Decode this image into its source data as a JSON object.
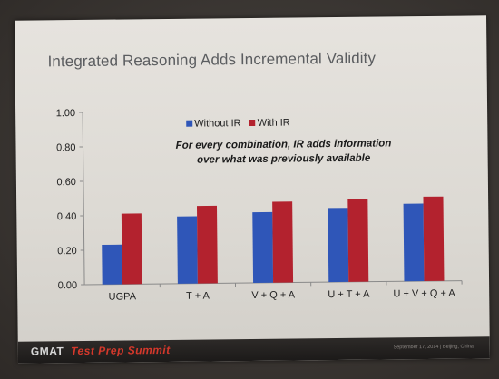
{
  "slide": {
    "title": "Integrated Reasoning Adds Incremental Validity",
    "note_line1": "For every combination, IR adds information",
    "note_line2": "over what was previously available"
  },
  "footer": {
    "brand": "GMAT",
    "event": "Test Prep Summit",
    "date_location": "September 17, 2014 | Beijing, China"
  },
  "chart_data": {
    "type": "bar",
    "title": "Integrated Reasoning Adds Incremental Validity",
    "xlabel": "",
    "ylabel": "",
    "categories": [
      "UGPA",
      "T + A",
      "V + Q + A",
      "U + T + A",
      "U + V + Q + A"
    ],
    "series": [
      {
        "name": "Without IR",
        "color": "#2f56b8",
        "values": [
          0.23,
          0.39,
          0.41,
          0.43,
          0.45
        ]
      },
      {
        "name": "With IR",
        "color": "#b3222e",
        "values": [
          0.41,
          0.45,
          0.47,
          0.48,
          0.49
        ]
      }
    ],
    "ylim": [
      0,
      1
    ],
    "yticks": [
      "0.00",
      "0.20",
      "0.40",
      "0.60",
      "0.80",
      "1.00"
    ],
    "grid": false,
    "legend": "top-center"
  }
}
